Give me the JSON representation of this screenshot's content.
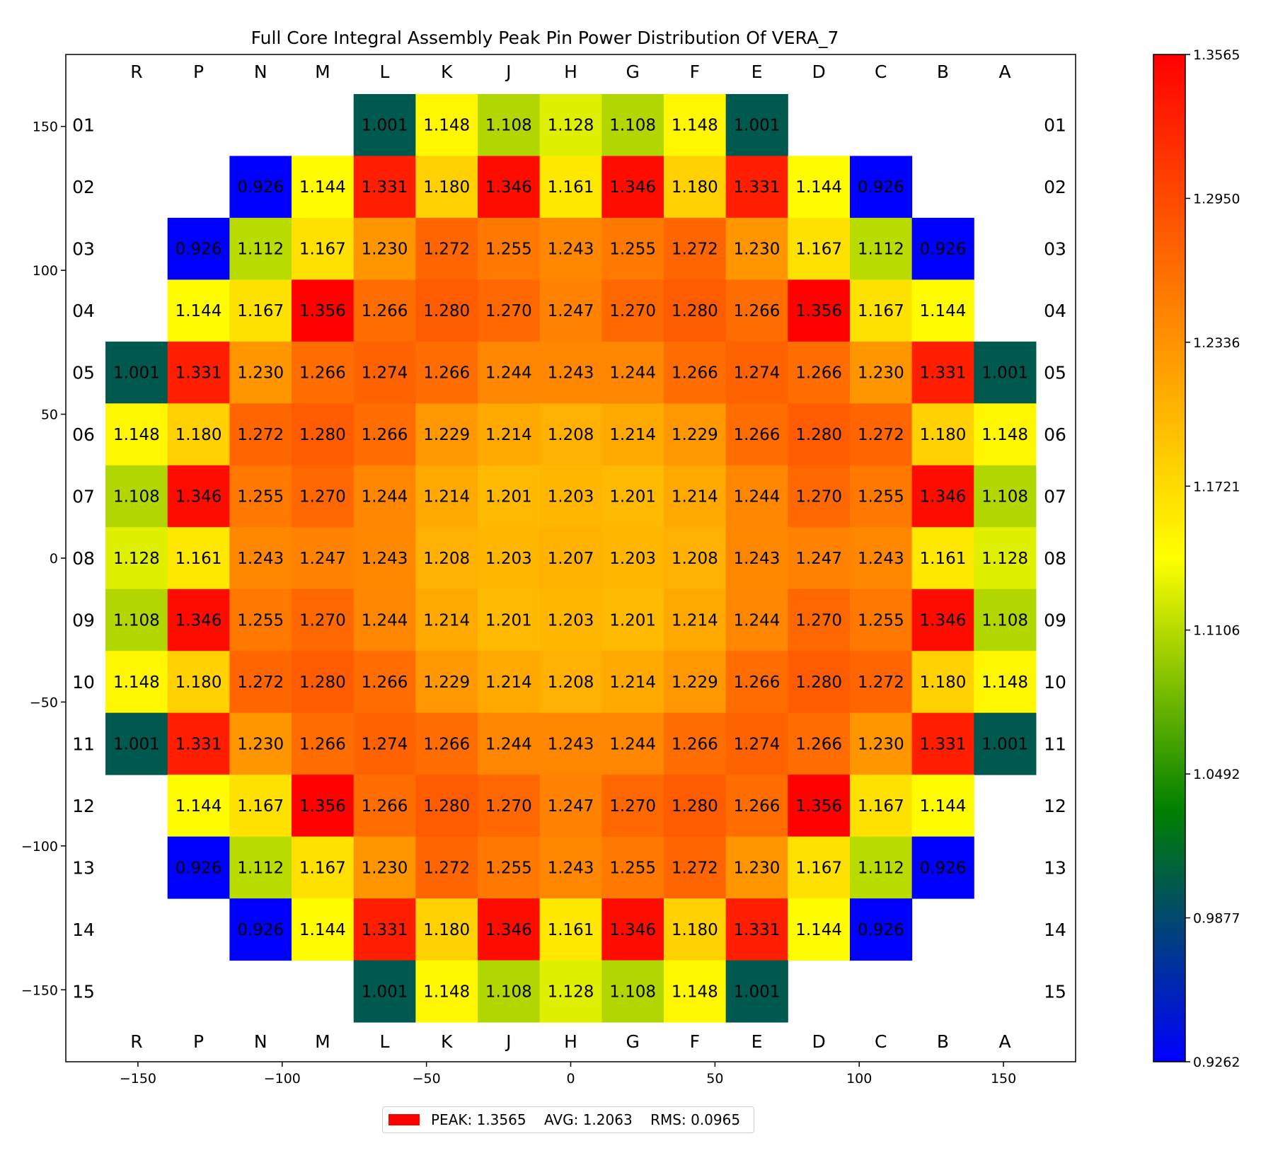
{
  "chart_data": {
    "type": "heatmap",
    "title": "Full Core Integral Assembly Peak Pin Power Distribution Of VERA_7",
    "columns": [
      "R",
      "P",
      "N",
      "M",
      "L",
      "K",
      "J",
      "H",
      "G",
      "F",
      "E",
      "D",
      "C",
      "B",
      "A"
    ],
    "rows": [
      "01",
      "02",
      "03",
      "04",
      "05",
      "06",
      "07",
      "08",
      "09",
      "10",
      "11",
      "12",
      "13",
      "14",
      "15"
    ],
    "values": [
      [
        null,
        null,
        null,
        null,
        1.001,
        1.148,
        1.108,
        1.128,
        1.108,
        1.148,
        1.001,
        null,
        null,
        null,
        null
      ],
      [
        null,
        null,
        0.926,
        1.144,
        1.331,
        1.18,
        1.346,
        1.161,
        1.346,
        1.18,
        1.331,
        1.144,
        0.926,
        null,
        null
      ],
      [
        null,
        0.926,
        1.112,
        1.167,
        1.23,
        1.272,
        1.255,
        1.243,
        1.255,
        1.272,
        1.23,
        1.167,
        1.112,
        0.926,
        null
      ],
      [
        null,
        1.144,
        1.167,
        1.356,
        1.266,
        1.28,
        1.27,
        1.247,
        1.27,
        1.28,
        1.266,
        1.356,
        1.167,
        1.144,
        null
      ],
      [
        1.001,
        1.331,
        1.23,
        1.266,
        1.274,
        1.266,
        1.244,
        1.243,
        1.244,
        1.266,
        1.274,
        1.266,
        1.23,
        1.331,
        1.001
      ],
      [
        1.148,
        1.18,
        1.272,
        1.28,
        1.266,
        1.229,
        1.214,
        1.208,
        1.214,
        1.229,
        1.266,
        1.28,
        1.272,
        1.18,
        1.148
      ],
      [
        1.108,
        1.346,
        1.255,
        1.27,
        1.244,
        1.214,
        1.201,
        1.203,
        1.201,
        1.214,
        1.244,
        1.27,
        1.255,
        1.346,
        1.108
      ],
      [
        1.128,
        1.161,
        1.243,
        1.247,
        1.243,
        1.208,
        1.203,
        1.207,
        1.203,
        1.208,
        1.243,
        1.247,
        1.243,
        1.161,
        1.128
      ],
      [
        1.108,
        1.346,
        1.255,
        1.27,
        1.244,
        1.214,
        1.201,
        1.203,
        1.201,
        1.214,
        1.244,
        1.27,
        1.255,
        1.346,
        1.108
      ],
      [
        1.148,
        1.18,
        1.272,
        1.28,
        1.266,
        1.229,
        1.214,
        1.208,
        1.214,
        1.229,
        1.266,
        1.28,
        1.272,
        1.18,
        1.148
      ],
      [
        1.001,
        1.331,
        1.23,
        1.266,
        1.274,
        1.266,
        1.244,
        1.243,
        1.244,
        1.266,
        1.274,
        1.266,
        1.23,
        1.331,
        1.001
      ],
      [
        null,
        1.144,
        1.167,
        1.356,
        1.266,
        1.28,
        1.27,
        1.247,
        1.27,
        1.28,
        1.266,
        1.356,
        1.167,
        1.144,
        null
      ],
      [
        null,
        0.926,
        1.112,
        1.167,
        1.23,
        1.272,
        1.255,
        1.243,
        1.255,
        1.272,
        1.23,
        1.167,
        1.112,
        0.926,
        null
      ],
      [
        null,
        null,
        0.926,
        1.144,
        1.331,
        1.18,
        1.346,
        1.161,
        1.346,
        1.18,
        1.331,
        1.144,
        0.926,
        null,
        null
      ],
      [
        null,
        null,
        null,
        null,
        1.001,
        1.148,
        1.108,
        1.128,
        1.108,
        1.148,
        1.001,
        null,
        null,
        null,
        null
      ]
    ],
    "xlim": [
      -175,
      175
    ],
    "ylim": [
      -175,
      175
    ],
    "cell_size": 21.5,
    "x_ticks": [
      -150,
      -100,
      -50,
      0,
      50,
      100,
      150
    ],
    "x_tick_labels": [
      "−150",
      "−100",
      "−50",
      "0",
      "50",
      "100",
      "150"
    ],
    "y_ticks": [
      150,
      100,
      50,
      0,
      -50,
      -100,
      -150
    ],
    "y_tick_labels": [
      "150",
      "100",
      "50",
      "0",
      "−50",
      "−100",
      "−150"
    ],
    "colorbar": {
      "min": 0.9262,
      "max": 1.3565,
      "ticks": [
        "1.3565",
        "1.2950",
        "1.2336",
        "1.1721",
        "1.1106",
        "1.0492",
        "0.9877",
        "0.9262"
      ],
      "colormap": [
        "#0000ff",
        "#008000",
        "#ffff00",
        "#ff8000",
        "#ff0000"
      ]
    },
    "summary": {
      "peak_label": "PEAK: 1.3565",
      "avg_label": "AVG: 1.2063",
      "rms_label": "RMS: 0.0965",
      "swatch_color": "#ff0000"
    }
  }
}
